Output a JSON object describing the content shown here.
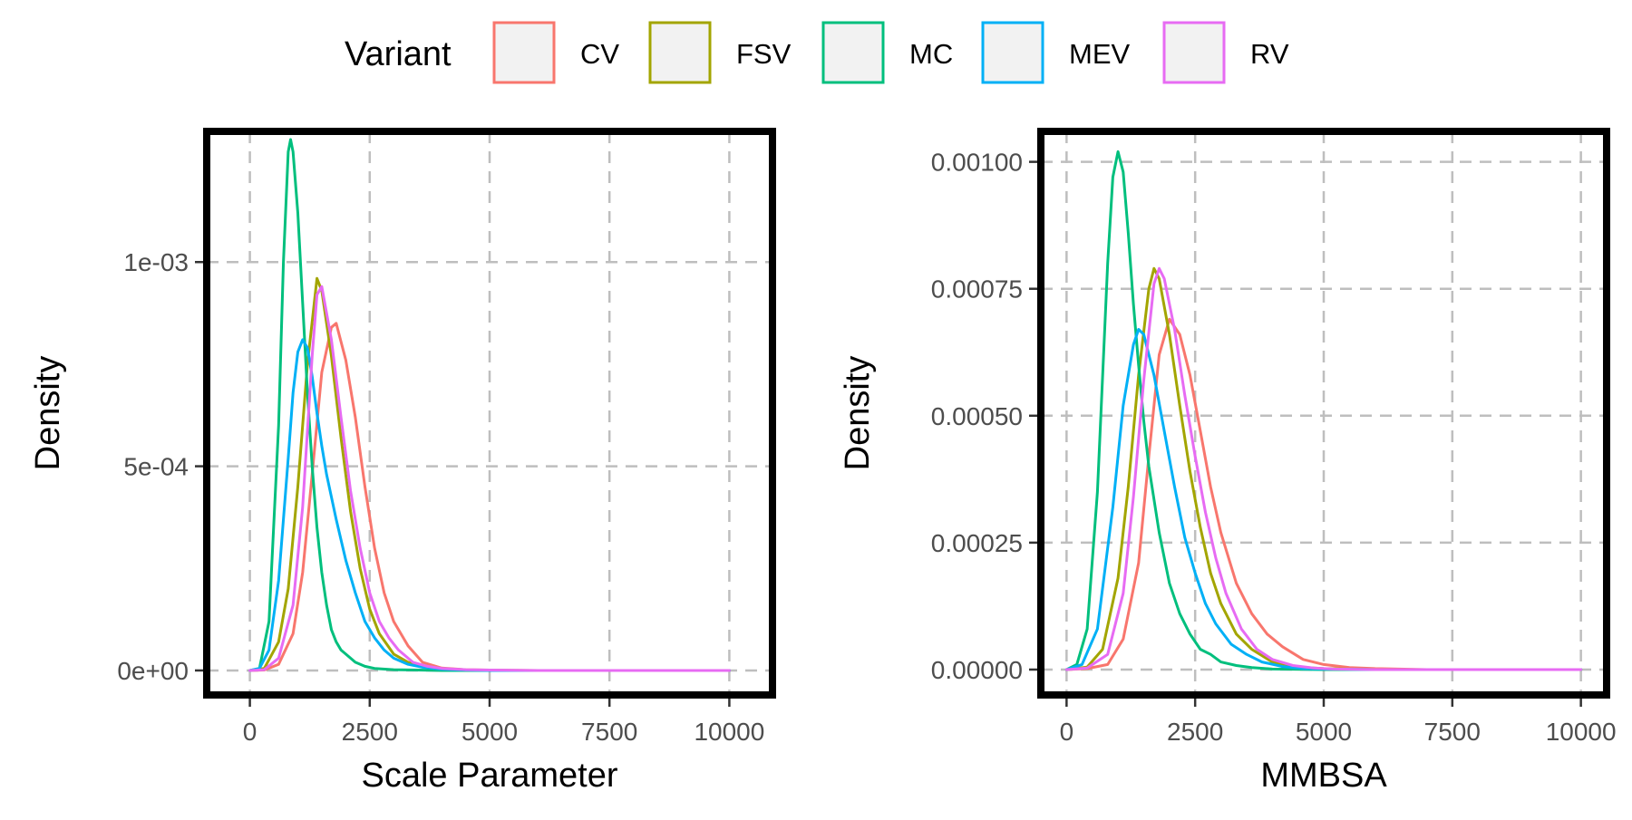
{
  "legend": {
    "title": "Variant",
    "placement": "top",
    "items": [
      {
        "label": "CV",
        "color": "#F8766D"
      },
      {
        "label": "FSV",
        "color": "#A3A500"
      },
      {
        "label": "MC",
        "color": "#00BF7D"
      },
      {
        "label": "MEV",
        "color": "#00B0F6"
      },
      {
        "label": "RV",
        "color": "#E76BF3"
      }
    ]
  },
  "chart_data": [
    {
      "type": "line",
      "title": "",
      "xlabel": "Scale Parameter",
      "ylabel": "Density",
      "xlim": [
        -900,
        10900
      ],
      "ylim": [
        -6e-05,
        0.00132
      ],
      "xticks": [
        0,
        2500,
        5000,
        7500,
        10000
      ],
      "xtick_labels": [
        "0",
        "2500",
        "5000",
        "7500",
        "10000"
      ],
      "yticks": [
        0,
        0.0005,
        0.001
      ],
      "ytick_labels": [
        "0e+00",
        "5e-04",
        "1e-03"
      ],
      "grid": true,
      "series": [
        {
          "name": "CV",
          "x": [
            0,
            300,
            600,
            900,
            1100,
            1300,
            1500,
            1700,
            1800,
            2000,
            2200,
            2400,
            2600,
            2800,
            3000,
            3300,
            3600,
            4000,
            4500,
            5000,
            6000,
            8000,
            10000
          ],
          "y": [
            0,
            1e-06,
            1.5e-05,
            9e-05,
            0.00024,
            0.00048,
            0.00073,
            0.00084,
            0.00085,
            0.00076,
            0.00062,
            0.00045,
            0.0003,
            0.00019,
            0.00012,
            6e-05,
            2e-05,
            6e-06,
            2e-06,
            1e-06,
            0,
            0,
            0
          ]
        },
        {
          "name": "FSV",
          "x": [
            0,
            300,
            600,
            800,
            1000,
            1200,
            1400,
            1500,
            1700,
            1900,
            2100,
            2300,
            2500,
            2700,
            3000,
            3300,
            3600,
            4000,
            4500,
            5000,
            6000,
            8000,
            10000
          ],
          "y": [
            0,
            5e-06,
            7e-05,
            0.0002,
            0.00045,
            0.00075,
            0.00096,
            0.00093,
            0.00077,
            0.00057,
            0.00039,
            0.00025,
            0.00015,
            9e-05,
            4e-05,
            2e-05,
            1e-05,
            4e-06,
            1e-06,
            0,
            0,
            0,
            0
          ]
        },
        {
          "name": "MC",
          "x": [
            0,
            200,
            400,
            600,
            700,
            800,
            850,
            900,
            1000,
            1100,
            1200,
            1300,
            1400,
            1500,
            1600,
            1700,
            1800,
            1900,
            2000,
            2200,
            2400,
            2600,
            3000,
            3500,
            4000,
            5000,
            10000
          ],
          "y": [
            0,
            5e-06,
            0.00012,
            0.0006,
            0.001,
            0.00127,
            0.0013,
            0.00127,
            0.00112,
            0.0009,
            0.00068,
            0.0005,
            0.00035,
            0.00024,
            0.00016,
            0.0001,
            7e-05,
            5e-05,
            4e-05,
            2e-05,
            1e-05,
            5e-06,
            2e-06,
            1e-06,
            0,
            0,
            0
          ]
        },
        {
          "name": "MEV",
          "x": [
            0,
            200,
            400,
            600,
            800,
            900,
            1000,
            1100,
            1200,
            1300,
            1400,
            1500,
            1600,
            1800,
            2000,
            2200,
            2400,
            2600,
            2800,
            3000,
            3300,
            3600,
            4000,
            4500,
            5000,
            6000,
            8000,
            10000
          ],
          "y": [
            0,
            5e-06,
            5e-05,
            0.00022,
            0.00052,
            0.00068,
            0.00078,
            0.00081,
            0.00079,
            0.00072,
            0.00063,
            0.00055,
            0.00048,
            0.00037,
            0.00027,
            0.00019,
            0.00012,
            8e-05,
            5e-05,
            3e-05,
            1.5e-05,
            8e-06,
            3e-06,
            1e-06,
            0,
            0,
            0,
            0
          ]
        },
        {
          "name": "RV",
          "x": [
            0,
            300,
            600,
            900,
            1100,
            1300,
            1400,
            1500,
            1700,
            1900,
            2100,
            2300,
            2500,
            2700,
            2900,
            3100,
            3400,
            3700,
            4000,
            4500,
            5000,
            6000,
            8000,
            10000
          ],
          "y": [
            0,
            2e-06,
            3e-05,
            0.00016,
            0.0004,
            0.00077,
            0.00092,
            0.00094,
            0.00081,
            0.00062,
            0.00044,
            0.0003,
            0.00019,
            0.00012,
            8e-05,
            5e-05,
            2e-05,
            1e-05,
            5e-06,
            2e-06,
            1e-06,
            0,
            0,
            0
          ]
        }
      ]
    },
    {
      "type": "line",
      "title": "",
      "xlabel": "MMBSA",
      "ylabel": "Density",
      "xlim": [
        -500,
        10500
      ],
      "ylim": [
        -5e-05,
        0.00106
      ],
      "xticks": [
        0,
        2500,
        5000,
        7500,
        10000
      ],
      "xtick_labels": [
        "0",
        "2500",
        "5000",
        "7500",
        "10000"
      ],
      "yticks": [
        0,
        0.00025,
        0.0005,
        0.00075,
        0.001
      ],
      "ytick_labels": [
        "0.00000",
        "0.00025",
        "0.00050",
        "0.00075",
        "0.00100"
      ],
      "grid": true,
      "series": [
        {
          "name": "CV",
          "x": [
            0,
            400,
            800,
            1100,
            1400,
            1600,
            1800,
            2000,
            2200,
            2400,
            2600,
            2800,
            3000,
            3300,
            3600,
            3900,
            4200,
            4600,
            5000,
            5500,
            6000,
            7000,
            10000
          ],
          "y": [
            0,
            2e-06,
            1e-05,
            6e-05,
            0.00021,
            0.00042,
            0.00062,
            0.00069,
            0.00066,
            0.00058,
            0.00047,
            0.00036,
            0.00027,
            0.00017,
            0.00011,
            7e-05,
            4.5e-05,
            2e-05,
            1e-05,
            4e-06,
            2e-06,
            0,
            0
          ]
        },
        {
          "name": "FSV",
          "x": [
            0,
            400,
            700,
            1000,
            1200,
            1400,
            1600,
            1700,
            1800,
            2000,
            2200,
            2400,
            2600,
            2800,
            3000,
            3300,
            3600,
            4000,
            4500,
            5000,
            6000,
            8000,
            10000
          ],
          "y": [
            0,
            5e-06,
            4e-05,
            0.00018,
            0.00036,
            0.00058,
            0.00075,
            0.00079,
            0.00077,
            0.00066,
            0.00052,
            0.00039,
            0.00028,
            0.00019,
            0.00013,
            7e-05,
            4e-05,
            1.5e-05,
            5e-06,
            2e-06,
            0,
            0,
            0
          ]
        },
        {
          "name": "MC",
          "x": [
            0,
            200,
            400,
            600,
            800,
            900,
            1000,
            1100,
            1200,
            1300,
            1400,
            1500,
            1600,
            1800,
            2000,
            2200,
            2400,
            2600,
            2800,
            3000,
            3300,
            3600,
            4000,
            5000,
            10000
          ],
          "y": [
            0,
            1e-05,
            8e-05,
            0.00035,
            0.0008,
            0.00097,
            0.00102,
            0.00098,
            0.00086,
            0.00072,
            0.0006,
            0.00049,
            0.0004,
            0.00027,
            0.00017,
            0.00011,
            7e-05,
            4e-05,
            3e-05,
            1.5e-05,
            8e-06,
            4e-06,
            1e-06,
            0,
            0
          ]
        },
        {
          "name": "MEV",
          "x": [
            0,
            300,
            600,
            900,
            1100,
            1300,
            1400,
            1500,
            1700,
            1900,
            2100,
            2300,
            2500,
            2700,
            2900,
            3200,
            3500,
            3800,
            4200,
            4600,
            5000,
            6000,
            8000,
            10000
          ],
          "y": [
            0,
            1e-05,
            8e-05,
            0.00032,
            0.00052,
            0.00064,
            0.00067,
            0.00066,
            0.00058,
            0.00047,
            0.00036,
            0.00026,
            0.00019,
            0.00013,
            9e-05,
            5e-05,
            3e-05,
            1.5e-05,
            6e-06,
            2e-06,
            1e-06,
            0,
            0,
            0
          ]
        },
        {
          "name": "RV",
          "x": [
            0,
            400,
            800,
            1100,
            1300,
            1500,
            1700,
            1800,
            1900,
            2100,
            2300,
            2500,
            2700,
            2900,
            3100,
            3400,
            3700,
            4000,
            4400,
            4800,
            5200,
            6000,
            8000,
            10000
          ],
          "y": [
            0,
            3e-06,
            3e-05,
            0.00015,
            0.00034,
            0.00057,
            0.00076,
            0.00079,
            0.00077,
            0.00067,
            0.00054,
            0.00042,
            0.00031,
            0.00022,
            0.00015,
            8e-05,
            4e-05,
            2e-05,
            8e-06,
            3e-06,
            1e-06,
            0,
            0,
            0
          ]
        }
      ]
    }
  ]
}
